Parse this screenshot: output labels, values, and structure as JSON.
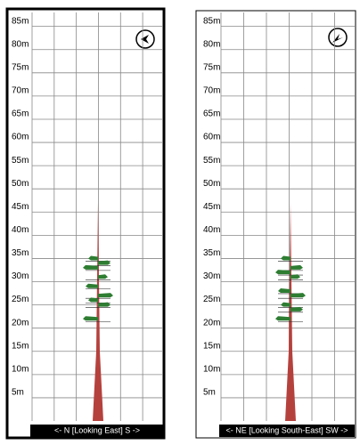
{
  "chart_data": [
    {
      "type": "tree-profile",
      "title": "<- N [Looking East] S ->",
      "ylim": [
        0,
        88
      ],
      "yticks": [
        {
          "value": 5,
          "label": "5m"
        },
        {
          "value": 10,
          "label": "10m"
        },
        {
          "value": 15,
          "label": "15m"
        },
        {
          "value": 20,
          "label": "20m"
        },
        {
          "value": 25,
          "label": "25m"
        },
        {
          "value": 30,
          "label": "30m"
        },
        {
          "value": 35,
          "label": "35m"
        },
        {
          "value": 40,
          "label": "40m"
        },
        {
          "value": 45,
          "label": "45m"
        },
        {
          "value": 50,
          "label": "50m"
        },
        {
          "value": 55,
          "label": "55m"
        },
        {
          "value": 60,
          "label": "60m"
        },
        {
          "value": 65,
          "label": "65m"
        },
        {
          "value": 70,
          "label": "70m"
        },
        {
          "value": 75,
          "label": "75m"
        },
        {
          "value": 80,
          "label": "80m"
        },
        {
          "value": 85,
          "label": "85m"
        }
      ],
      "trunk_height": 47,
      "trunk_color": "#b5413d",
      "branch_heights": [
        35,
        34,
        33,
        31,
        29,
        27,
        26,
        25,
        22
      ],
      "branch_color": "#2e7d32",
      "grid": true
    },
    {
      "type": "tree-profile",
      "title": "<- NE [Looking South-East] SW ->",
      "ylim": [
        0,
        88
      ],
      "yticks": [
        {
          "value": 5,
          "label": "5m"
        },
        {
          "value": 10,
          "label": "10m"
        },
        {
          "value": 15,
          "label": "15m"
        },
        {
          "value": 20,
          "label": "20m"
        },
        {
          "value": 25,
          "label": "25m"
        },
        {
          "value": 30,
          "label": "30m"
        },
        {
          "value": 35,
          "label": "35m"
        },
        {
          "value": 40,
          "label": "40m"
        },
        {
          "value": 45,
          "label": "45m"
        },
        {
          "value": 50,
          "label": "50m"
        },
        {
          "value": 55,
          "label": "55m"
        },
        {
          "value": 60,
          "label": "60m"
        },
        {
          "value": 65,
          "label": "65m"
        },
        {
          "value": 70,
          "label": "70m"
        },
        {
          "value": 75,
          "label": "75m"
        },
        {
          "value": 80,
          "label": "80m"
        },
        {
          "value": 85,
          "label": "85m"
        }
      ],
      "trunk_height": 47,
      "trunk_color": "#b5413d",
      "branch_heights": [
        35,
        33,
        32,
        31,
        28,
        27,
        25,
        24,
        22
      ],
      "branch_color": "#2e7d32",
      "grid": true
    }
  ]
}
